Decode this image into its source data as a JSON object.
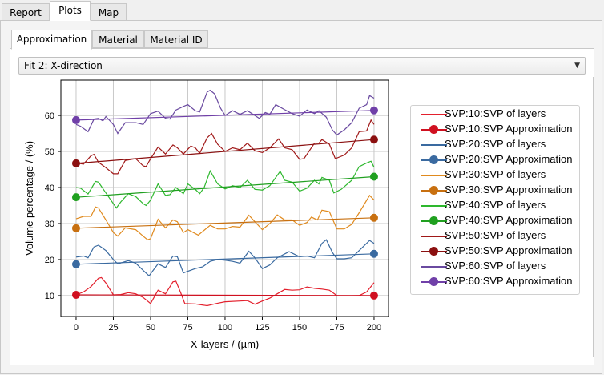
{
  "outer_tabs": [
    "Report",
    "Plots",
    "Map"
  ],
  "outer_active": 1,
  "inner_tabs": [
    "Approximation",
    "Material",
    "Material ID"
  ],
  "inner_active": 0,
  "fit_select": {
    "value": "Fit 2: X-direction"
  },
  "chart_data": {
    "type": "line",
    "title": "",
    "xlabel": "X-layers / (µm)",
    "ylabel": "Volume percentage / (%)",
    "xlim": [
      -10.2,
      209.7
    ],
    "ylim": [
      4.2,
      69.8
    ],
    "xticks": [
      0,
      25,
      50,
      75,
      100,
      125,
      150,
      175,
      200
    ],
    "yticks": [
      10,
      20,
      30,
      40,
      50,
      60
    ],
    "grid": true,
    "legend_position": "right",
    "series": [
      {
        "name": "SVP:10:SVP of layers",
        "color": "#e3202d",
        "kind": "line",
        "x": [
          0,
          5,
          10,
          15,
          17,
          20,
          25,
          30,
          35,
          40,
          45,
          50,
          55,
          60,
          65,
          67,
          70,
          73,
          80,
          88,
          95,
          100,
          110,
          115,
          120,
          125,
          130,
          135,
          140,
          145,
          150,
          155,
          160,
          165,
          170,
          175,
          180,
          190,
          195,
          200
        ],
        "y": [
          10.2,
          11,
          12.5,
          14.8,
          15,
          13.5,
          10.2,
          10.3,
          10.8,
          10.5,
          9.5,
          7.8,
          11.5,
          10.5,
          13.8,
          14,
          11,
          7.8,
          7.7,
          7.2,
          7.9,
          8.3,
          8.5,
          8.6,
          7.6,
          8.5,
          9.3,
          10.5,
          11.7,
          11.5,
          11.6,
          12.4,
          12,
          11.8,
          11.5,
          10,
          9.9,
          10,
          11,
          13.6
        ]
      },
      {
        "name": "SVP:10:SVP Approximation",
        "color": "#d01020",
        "kind": "fit",
        "x": [
          0,
          200
        ],
        "y": [
          10.2,
          10.0
        ]
      },
      {
        "name": "SVP:20:SVP of layers",
        "color": "#3a6aa0",
        "kind": "line",
        "x": [
          0,
          5,
          8,
          12,
          15,
          20,
          25,
          28,
          35,
          40,
          45,
          49,
          55,
          60,
          65,
          68,
          72,
          80,
          85,
          90,
          95,
          100,
          105,
          110,
          116,
          120,
          125,
          130,
          135,
          143,
          150,
          155,
          160,
          165,
          168,
          172,
          175,
          180,
          185,
          190,
          197,
          200
        ],
        "y": [
          20.7,
          21,
          20.5,
          23.5,
          24,
          22.5,
          20,
          18.8,
          19.7,
          19,
          17,
          15.5,
          18.8,
          17.8,
          21,
          20.8,
          16.3,
          17.5,
          18,
          19.5,
          20,
          19.8,
          19.5,
          19,
          22.3,
          20.5,
          17.5,
          18.5,
          20.5,
          22.2,
          20.8,
          21,
          20.5,
          24.5,
          25.5,
          22,
          20.2,
          20.2,
          20.5,
          22.5,
          25.3,
          24.5
        ]
      },
      {
        "name": "SVP:20:SVP Approximation",
        "color": "#3a6aa0",
        "kind": "fit",
        "x": [
          0,
          200
        ],
        "y": [
          18.7,
          21.6
        ]
      },
      {
        "name": "SVP:30:SVP of layers",
        "color": "#e08a1e",
        "kind": "line",
        "x": [
          0,
          5,
          10,
          13,
          15,
          20,
          25,
          28,
          33,
          40,
          45,
          48,
          50,
          55,
          60,
          65,
          68,
          72,
          75,
          82,
          90,
          95,
          100,
          105,
          110,
          116,
          120,
          125,
          130,
          135,
          140,
          145,
          150,
          155,
          158,
          162,
          165,
          170,
          175,
          180,
          185,
          190,
          197,
          200
        ],
        "y": [
          31.3,
          32,
          32,
          34.6,
          34.3,
          31,
          27.5,
          26.5,
          28.8,
          28.3,
          26.5,
          25.5,
          25.8,
          31.2,
          28.8,
          31,
          30.5,
          27.5,
          28.3,
          26.8,
          29.5,
          28.5,
          28.5,
          29.2,
          29,
          32.3,
          30.5,
          28.3,
          30,
          32.4,
          31,
          31,
          29.5,
          30.3,
          31.8,
          31,
          33.7,
          33.3,
          28.5,
          28.5,
          29.8,
          33,
          37.8,
          36.5
        ]
      },
      {
        "name": "SVP:30:SVP Approximation",
        "color": "#c87010",
        "kind": "fit",
        "x": [
          0,
          200
        ],
        "y": [
          28.7,
          31.6
        ]
      },
      {
        "name": "SVP:40:SVP of layers",
        "color": "#2eb82e",
        "kind": "line",
        "x": [
          0,
          3,
          8,
          13,
          15,
          20,
          25,
          27,
          30,
          35,
          40,
          45,
          47,
          50,
          55,
          60,
          63,
          67,
          72,
          75,
          80,
          83,
          86,
          90,
          95,
          100,
          105,
          110,
          115,
          120,
          125,
          130,
          137,
          140,
          145,
          150,
          155,
          160,
          163,
          165,
          170,
          173,
          178,
          185,
          190,
          195,
          198,
          200
        ],
        "y": [
          40,
          39.8,
          38.2,
          41.7,
          41.5,
          38.5,
          35.5,
          34.3,
          36,
          38.3,
          37.5,
          35.5,
          35,
          36.5,
          41,
          37.8,
          38,
          40,
          38.3,
          41,
          39.5,
          38.3,
          40,
          44.6,
          41,
          39.6,
          40.5,
          40,
          42,
          39.5,
          39.3,
          40.5,
          44.5,
          42,
          41.5,
          39,
          39.8,
          42,
          41,
          42.8,
          42,
          38.5,
          39.5,
          42,
          45.8,
          46.8,
          47.3,
          45.6
        ]
      },
      {
        "name": "SVP:40:SVP Approximation",
        "color": "#20a020",
        "kind": "fit",
        "x": [
          0,
          200
        ],
        "y": [
          37.3,
          43.0
        ]
      },
      {
        "name": "SVP:50:SVP of layers",
        "color": "#a01818",
        "kind": "line",
        "x": [
          0,
          5,
          10,
          12,
          15,
          20,
          25,
          28,
          33,
          40,
          45,
          47,
          50,
          55,
          60,
          65,
          68,
          72,
          77,
          80,
          83,
          88,
          91,
          95,
          100,
          105,
          110,
          115,
          120,
          125,
          130,
          136,
          140,
          145,
          150,
          153,
          160,
          163,
          165,
          170,
          174,
          180,
          185,
          190,
          195,
          198,
          200
        ],
        "y": [
          46.8,
          46.5,
          48.8,
          49.2,
          47,
          45.5,
          43.8,
          43.8,
          47.5,
          48,
          46,
          45.8,
          48,
          51.2,
          49.3,
          51.8,
          51,
          49.3,
          51.5,
          51,
          49.5,
          53.8,
          55,
          52,
          50,
          51,
          50.5,
          52.3,
          50.2,
          49.7,
          51,
          53.5,
          51,
          50.5,
          47.8,
          48,
          52.3,
          52.3,
          53.3,
          52,
          48,
          49,
          51,
          55.5,
          55.7,
          58.7,
          57.5
        ]
      },
      {
        "name": "SVP:50:SVP Approximation",
        "color": "#8b1010",
        "kind": "fit",
        "x": [
          0,
          200
        ],
        "y": [
          46.7,
          53.3
        ]
      },
      {
        "name": "SVP:60:SVP of layers",
        "color": "#6a4aa0",
        "kind": "line",
        "x": [
          0,
          3,
          8,
          12,
          15,
          18,
          20,
          25,
          28,
          33,
          40,
          45,
          50,
          55,
          60,
          63,
          67,
          72,
          75,
          80,
          83,
          88,
          90,
          93,
          97,
          100,
          105,
          110,
          115,
          120,
          123,
          127,
          130,
          134,
          140,
          145,
          150,
          155,
          160,
          163,
          168,
          172,
          175,
          180,
          185,
          190,
          195,
          197,
          200
        ],
        "y": [
          57.5,
          57,
          55.5,
          59,
          59.2,
          58.5,
          59.7,
          57.5,
          55,
          58,
          58,
          57.5,
          60.5,
          61.2,
          59.2,
          59,
          61.5,
          62.5,
          63,
          61.3,
          61,
          66.5,
          67,
          66,
          62,
          60,
          61.3,
          60.3,
          61.3,
          60,
          59.2,
          60.8,
          60.3,
          63,
          61.6,
          60.5,
          59.8,
          61.5,
          60.5,
          61.3,
          59.5,
          56,
          54.6,
          56,
          58,
          62,
          63,
          65.5,
          64.8
        ]
      },
      {
        "name": "SVP:60:SVP Approximation",
        "color": "#7040a8",
        "kind": "fit",
        "x": [
          0,
          200
        ],
        "y": [
          58.7,
          61.4
        ]
      }
    ]
  }
}
